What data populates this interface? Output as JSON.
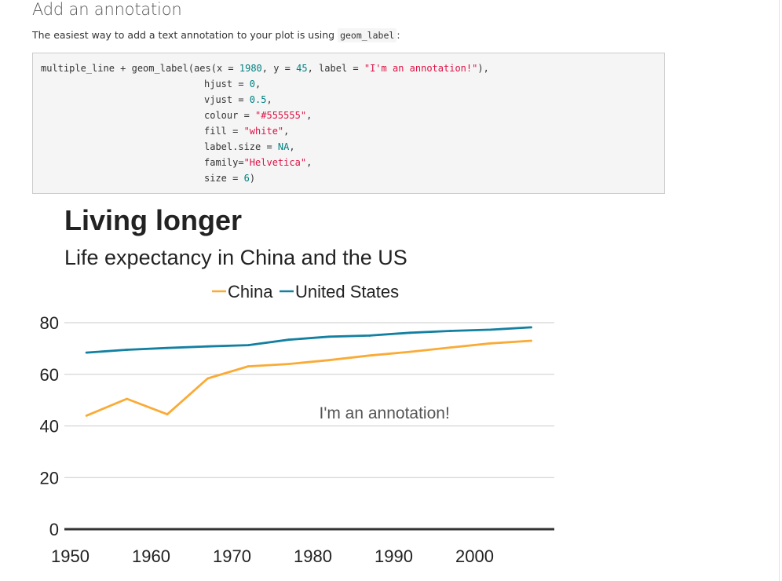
{
  "section": {
    "title": "Add an annotation",
    "intro_text": "The easiest way to add a text annotation to your plot is using",
    "intro_code": "geom_label",
    "intro_suffix": ":"
  },
  "code": {
    "lines": [
      [
        "multiple_line + geom_label(aes(x = ",
        "1980",
        ", y = ",
        "45",
        ", label = ",
        "\"I'm an annotation!\"",
        "),"
      ],
      [
        "hjust = ",
        "0",
        ","
      ],
      [
        "vjust = ",
        "0.5",
        ","
      ],
      [
        "colour = ",
        "\"#555555\"",
        ","
      ],
      [
        "fill = ",
        "\"white\"",
        ","
      ],
      [
        "label.size = ",
        "NA",
        ","
      ],
      [
        "family=",
        "\"Helvetica\"",
        ","
      ],
      [
        "size = ",
        "6",
        ")"
      ]
    ]
  },
  "colors": {
    "china": "#FAAB36",
    "us": "#1380A1",
    "grid": "#cbcbcb",
    "baseline": "#333333",
    "annotation_text": "#555555"
  },
  "chart_data": {
    "type": "line",
    "title": "Living longer",
    "subtitle": "Life expectancy in China and the US",
    "xlabel": "",
    "ylabel": "",
    "xlim": [
      1950,
      2010
    ],
    "ylim": [
      0,
      80
    ],
    "x_ticks": [
      1950,
      1960,
      1970,
      1980,
      1990,
      2000
    ],
    "y_ticks": [
      0,
      20,
      40,
      60,
      80
    ],
    "grid": true,
    "legend_position": "top",
    "series": [
      {
        "name": "China",
        "x": [
          1952,
          1957,
          1962,
          1967,
          1972,
          1977,
          1982,
          1987,
          1992,
          1997,
          2002,
          2007
        ],
        "values": [
          44.0,
          50.5,
          44.5,
          58.4,
          63.1,
          64.0,
          65.5,
          67.3,
          68.7,
          70.4,
          72.0,
          73.0
        ]
      },
      {
        "name": "United States",
        "x": [
          1952,
          1957,
          1962,
          1967,
          1972,
          1977,
          1982,
          1987,
          1992,
          1997,
          2002,
          2007
        ],
        "values": [
          68.4,
          69.5,
          70.2,
          70.8,
          71.3,
          73.4,
          74.6,
          75.0,
          76.1,
          76.8,
          77.3,
          78.2
        ]
      }
    ],
    "annotations": [
      {
        "text": "I'm an annotation!",
        "x": 1980,
        "y": 45
      }
    ]
  }
}
